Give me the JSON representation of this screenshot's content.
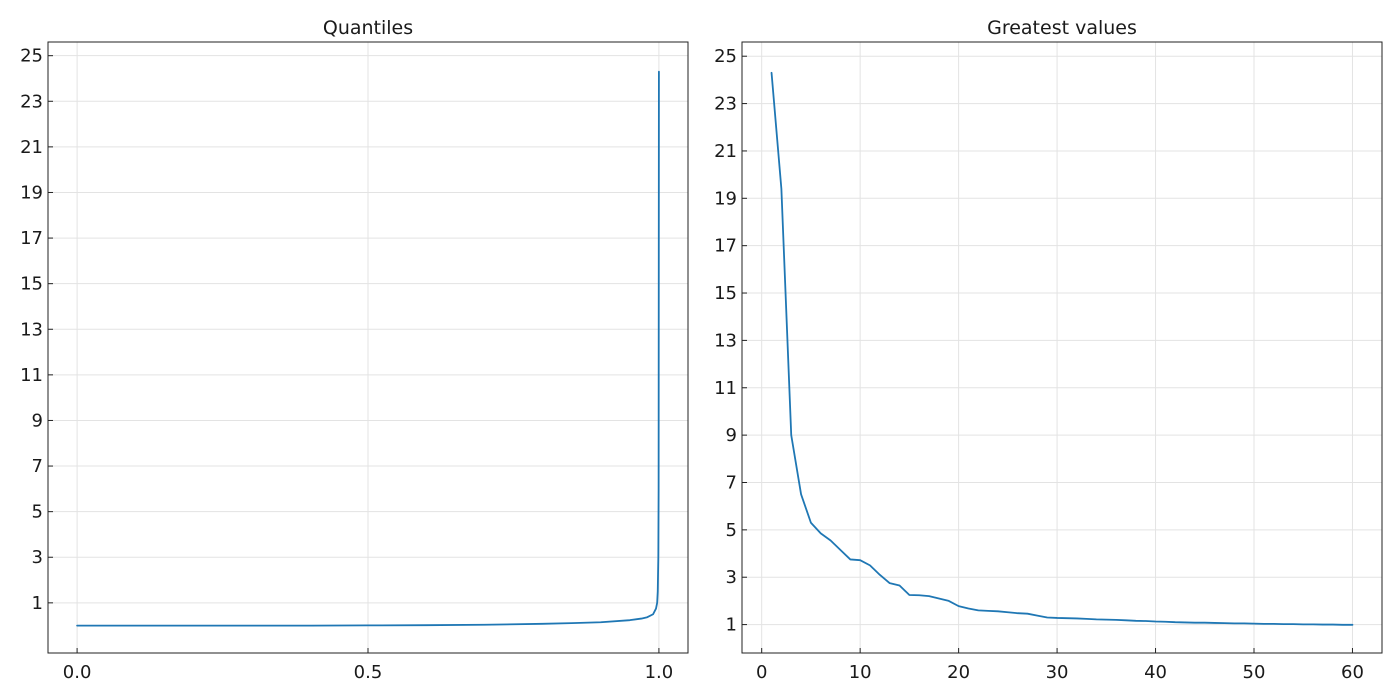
{
  "chart_data": [
    {
      "type": "line",
      "title": "Quantiles",
      "xlabel": "",
      "ylabel": "",
      "xlim": [
        -0.05,
        1.05
      ],
      "ylim": [
        -1.2,
        25.6
      ],
      "xticks": [
        0.0,
        0.5,
        1.0
      ],
      "xtick_labels": [
        "0.0",
        "0.5",
        "1.0"
      ],
      "yticks": [
        1,
        3,
        5,
        7,
        9,
        11,
        13,
        15,
        17,
        19,
        21,
        23,
        25
      ],
      "ytick_labels": [
        "1",
        "3",
        "5",
        "7",
        "9",
        "11",
        "13",
        "15",
        "17",
        "19",
        "21",
        "23",
        "25"
      ],
      "grid": true,
      "color": "#1f77b4",
      "series": [
        {
          "x": [
            0.0,
            0.1,
            0.2,
            0.3,
            0.4,
            0.5,
            0.6,
            0.7,
            0.8,
            0.85,
            0.9,
            0.95,
            0.97,
            0.98,
            0.99,
            0.995,
            0.997,
            0.998,
            0.999,
            0.9995,
            1.0
          ],
          "y": [
            0.0,
            0.0,
            0.0,
            0.0,
            0.0,
            0.01,
            0.02,
            0.04,
            0.08,
            0.11,
            0.15,
            0.24,
            0.31,
            0.37,
            0.5,
            0.75,
            1.0,
            1.5,
            3.0,
            6.0,
            24.3
          ]
        }
      ]
    },
    {
      "type": "line",
      "title": "Greatest values",
      "xlabel": "",
      "ylabel": "",
      "xlim": [
        -2,
        63
      ],
      "ylim": [
        -0.2,
        25.6
      ],
      "xticks": [
        0,
        10,
        20,
        30,
        40,
        50,
        60
      ],
      "xtick_labels": [
        "0",
        "10",
        "20",
        "30",
        "40",
        "50",
        "60"
      ],
      "yticks": [
        1,
        3,
        5,
        7,
        9,
        11,
        13,
        15,
        17,
        19,
        21,
        23,
        25
      ],
      "ytick_labels": [
        "1",
        "3",
        "5",
        "7",
        "9",
        "11",
        "13",
        "15",
        "17",
        "19",
        "21",
        "23",
        "25"
      ],
      "grid": true,
      "color": "#1f77b4",
      "series": [
        {
          "x": [
            1,
            2,
            3,
            4,
            5,
            6,
            7,
            8,
            9,
            10,
            11,
            12,
            13,
            14,
            15,
            16,
            17,
            18,
            19,
            20,
            21,
            22,
            23,
            24,
            25,
            26,
            27,
            28,
            29,
            30,
            31,
            32,
            33,
            34,
            35,
            36,
            37,
            38,
            39,
            40,
            41,
            42,
            43,
            44,
            45,
            46,
            47,
            48,
            49,
            50,
            51,
            52,
            53,
            54,
            55,
            56,
            57,
            58,
            59,
            60
          ],
          "y": [
            24.3,
            19.4,
            9.0,
            6.5,
            5.3,
            4.85,
            4.55,
            4.15,
            3.75,
            3.72,
            3.5,
            3.1,
            2.75,
            2.65,
            2.25,
            2.24,
            2.2,
            2.1,
            2.0,
            1.78,
            1.68,
            1.6,
            1.58,
            1.56,
            1.52,
            1.48,
            1.46,
            1.38,
            1.3,
            1.28,
            1.27,
            1.26,
            1.24,
            1.22,
            1.21,
            1.2,
            1.18,
            1.16,
            1.15,
            1.13,
            1.12,
            1.1,
            1.09,
            1.08,
            1.08,
            1.07,
            1.06,
            1.05,
            1.05,
            1.04,
            1.03,
            1.03,
            1.02,
            1.02,
            1.01,
            1.01,
            1.0,
            1.0,
            0.99,
            0.99
          ]
        }
      ]
    }
  ]
}
